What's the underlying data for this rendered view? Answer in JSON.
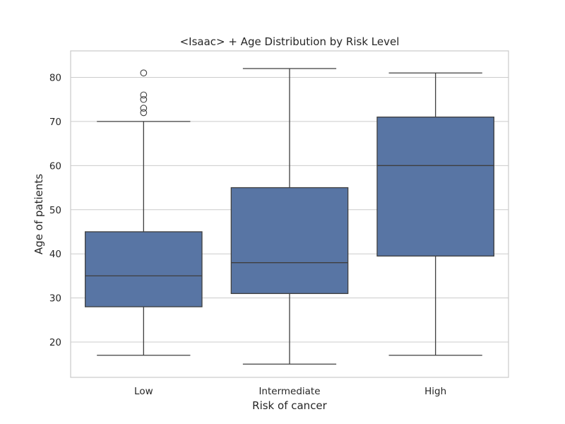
{
  "chart_data": {
    "type": "box",
    "title": "<Isaac> + Age Distribution by Risk Level",
    "xlabel": "Risk of cancer",
    "ylabel": "Age of patients",
    "categories": [
      "Low",
      "Intermediate",
      "High"
    ],
    "ylim": [
      12,
      86
    ],
    "yticks": [
      20,
      30,
      40,
      50,
      60,
      70,
      80
    ],
    "ytick_labels": [
      "20",
      "30",
      "40",
      "50",
      "60",
      "70",
      "80"
    ],
    "grid": true,
    "color": "#5875a4",
    "boxes": [
      {
        "category": "Low",
        "whisker_low": 17,
        "q1": 28,
        "median": 35,
        "q3": 45,
        "whisker_high": 70,
        "outliers": [
          72,
          73,
          75,
          76,
          81
        ]
      },
      {
        "category": "Intermediate",
        "whisker_low": 15,
        "q1": 31,
        "median": 38,
        "q3": 55,
        "whisker_high": 82,
        "outliers": []
      },
      {
        "category": "High",
        "whisker_low": 17,
        "q1": 39.5,
        "median": 60,
        "q3": 71,
        "whisker_high": 81,
        "outliers": []
      }
    ]
  }
}
